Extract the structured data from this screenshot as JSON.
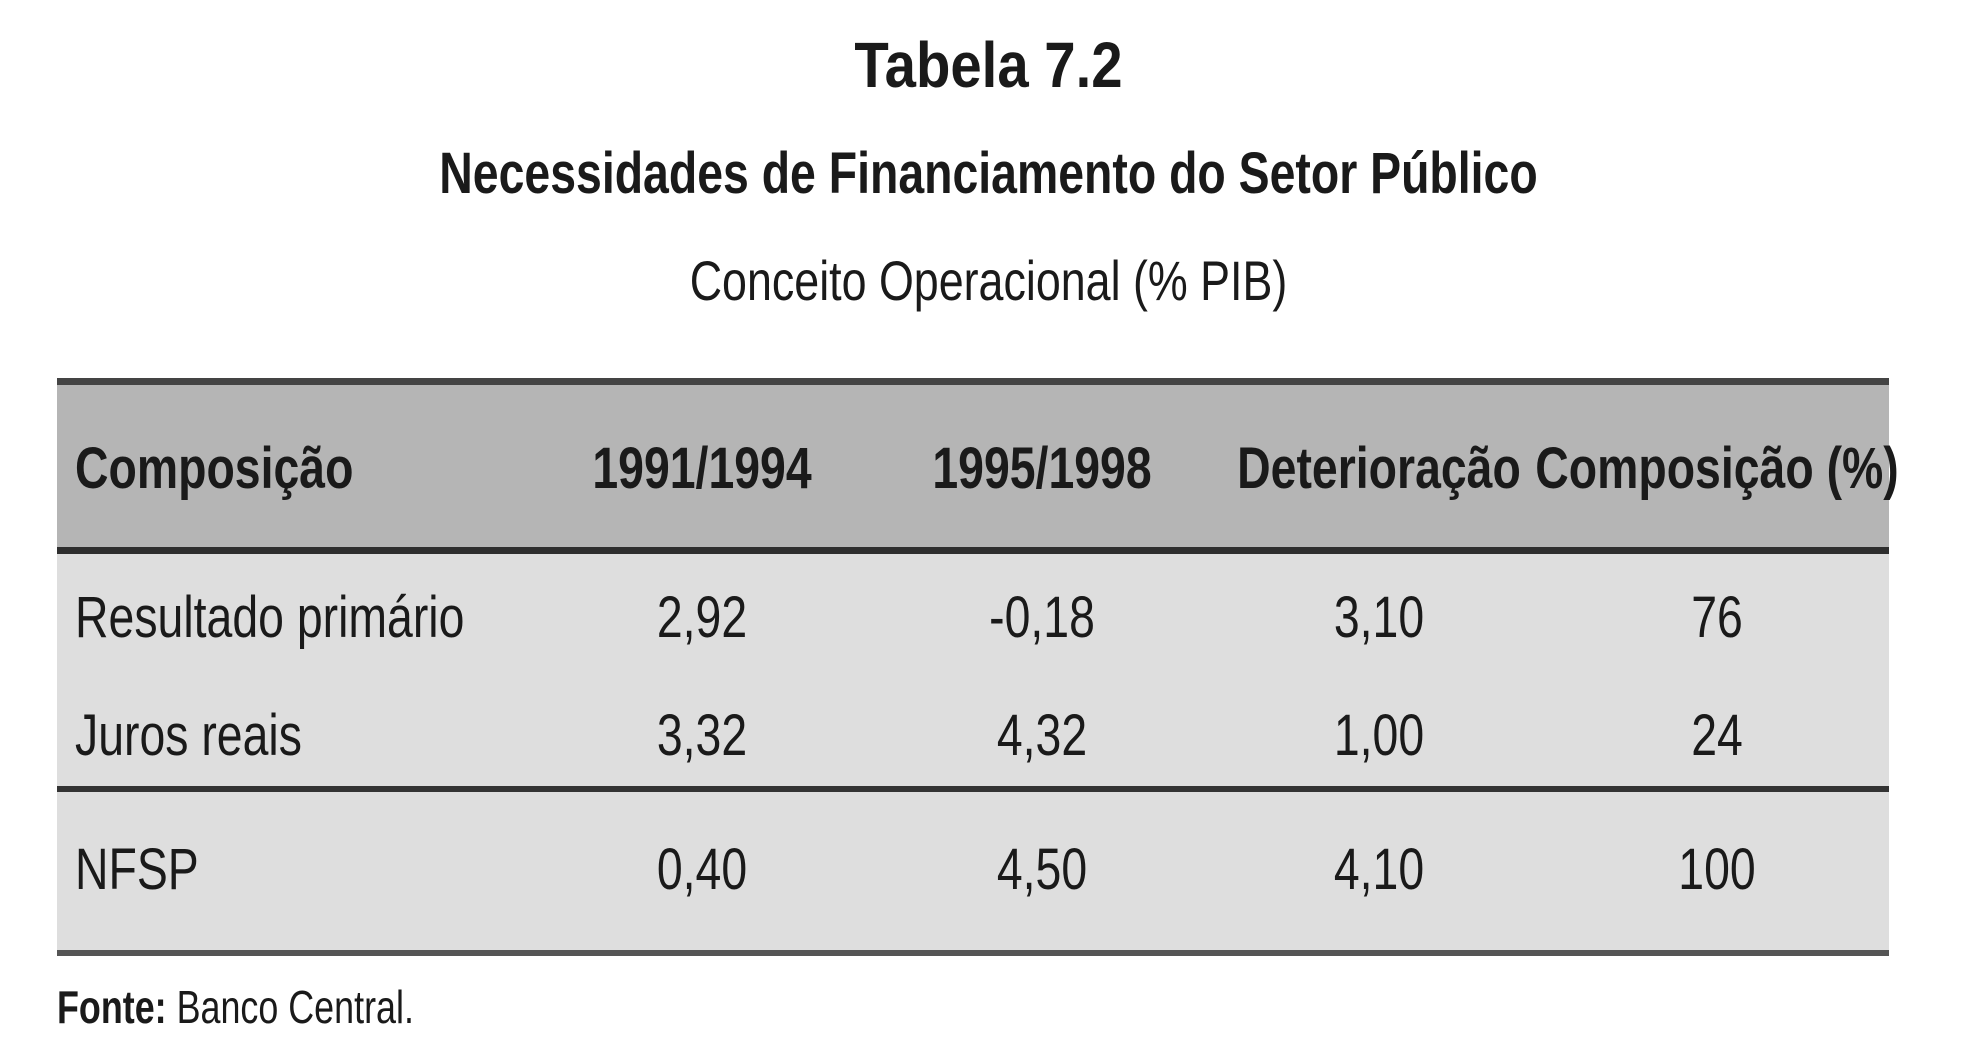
{
  "table": {
    "number": "Tabela 7.2",
    "title": "Necessidades de Financiamento do Setor Público",
    "subtitle": "Conceito Operacional (% PIB)",
    "headers": [
      "Composição",
      "1991/1994",
      "1995/1998",
      "Deterioração",
      "Composição (%)"
    ],
    "rows": [
      [
        "Resultado primário",
        "2,92",
        "-0,18",
        "3,10",
        "76"
      ],
      [
        "Juros reais",
        "3,32",
        "4,32",
        "1,00",
        "24"
      ]
    ],
    "total": [
      "NFSP",
      "0,40",
      "4,50",
      "4,10",
      "100"
    ]
  },
  "source": {
    "label": "Fonte:",
    "text": " Banco Central."
  }
}
